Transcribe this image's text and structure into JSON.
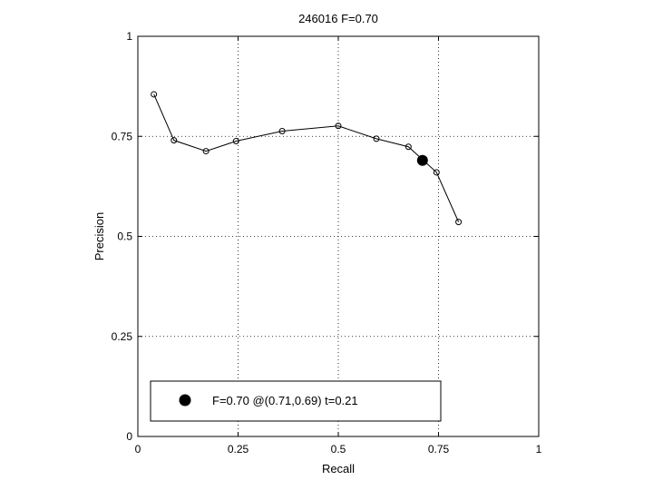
{
  "chart_data": {
    "type": "line",
    "title": "246016 F=0.70",
    "xlabel": "Recall",
    "ylabel": "Precision",
    "xlim": [
      0,
      1
    ],
    "ylim": [
      0,
      1
    ],
    "xticks": [
      0,
      0.25,
      0.5,
      0.75,
      1
    ],
    "yticks": [
      0,
      0.25,
      0.5,
      0.75,
      1
    ],
    "xtick_labels": [
      "0",
      "0.25",
      "0.5",
      "0.75",
      "1"
    ],
    "ytick_labels": [
      "0",
      "0.25",
      "0.5",
      "0.75",
      "1"
    ],
    "grid": true,
    "legend_position": "bottom",
    "series": [
      {
        "points": [
          [
            0.04,
            0.855
          ],
          [
            0.09,
            0.74
          ],
          [
            0.17,
            0.713
          ],
          [
            0.245,
            0.738
          ],
          [
            0.36,
            0.763
          ],
          [
            0.5,
            0.776
          ],
          [
            0.595,
            0.744
          ],
          [
            0.675,
            0.724
          ],
          [
            0.745,
            0.66
          ],
          [
            0.8,
            0.536
          ]
        ],
        "color": "#000000"
      }
    ],
    "highlight": {
      "x": 0.71,
      "y": 0.69,
      "color": "#000000"
    },
    "legend": {
      "label": "F=0.70 @(0.71,0.69) t=0.21"
    }
  }
}
